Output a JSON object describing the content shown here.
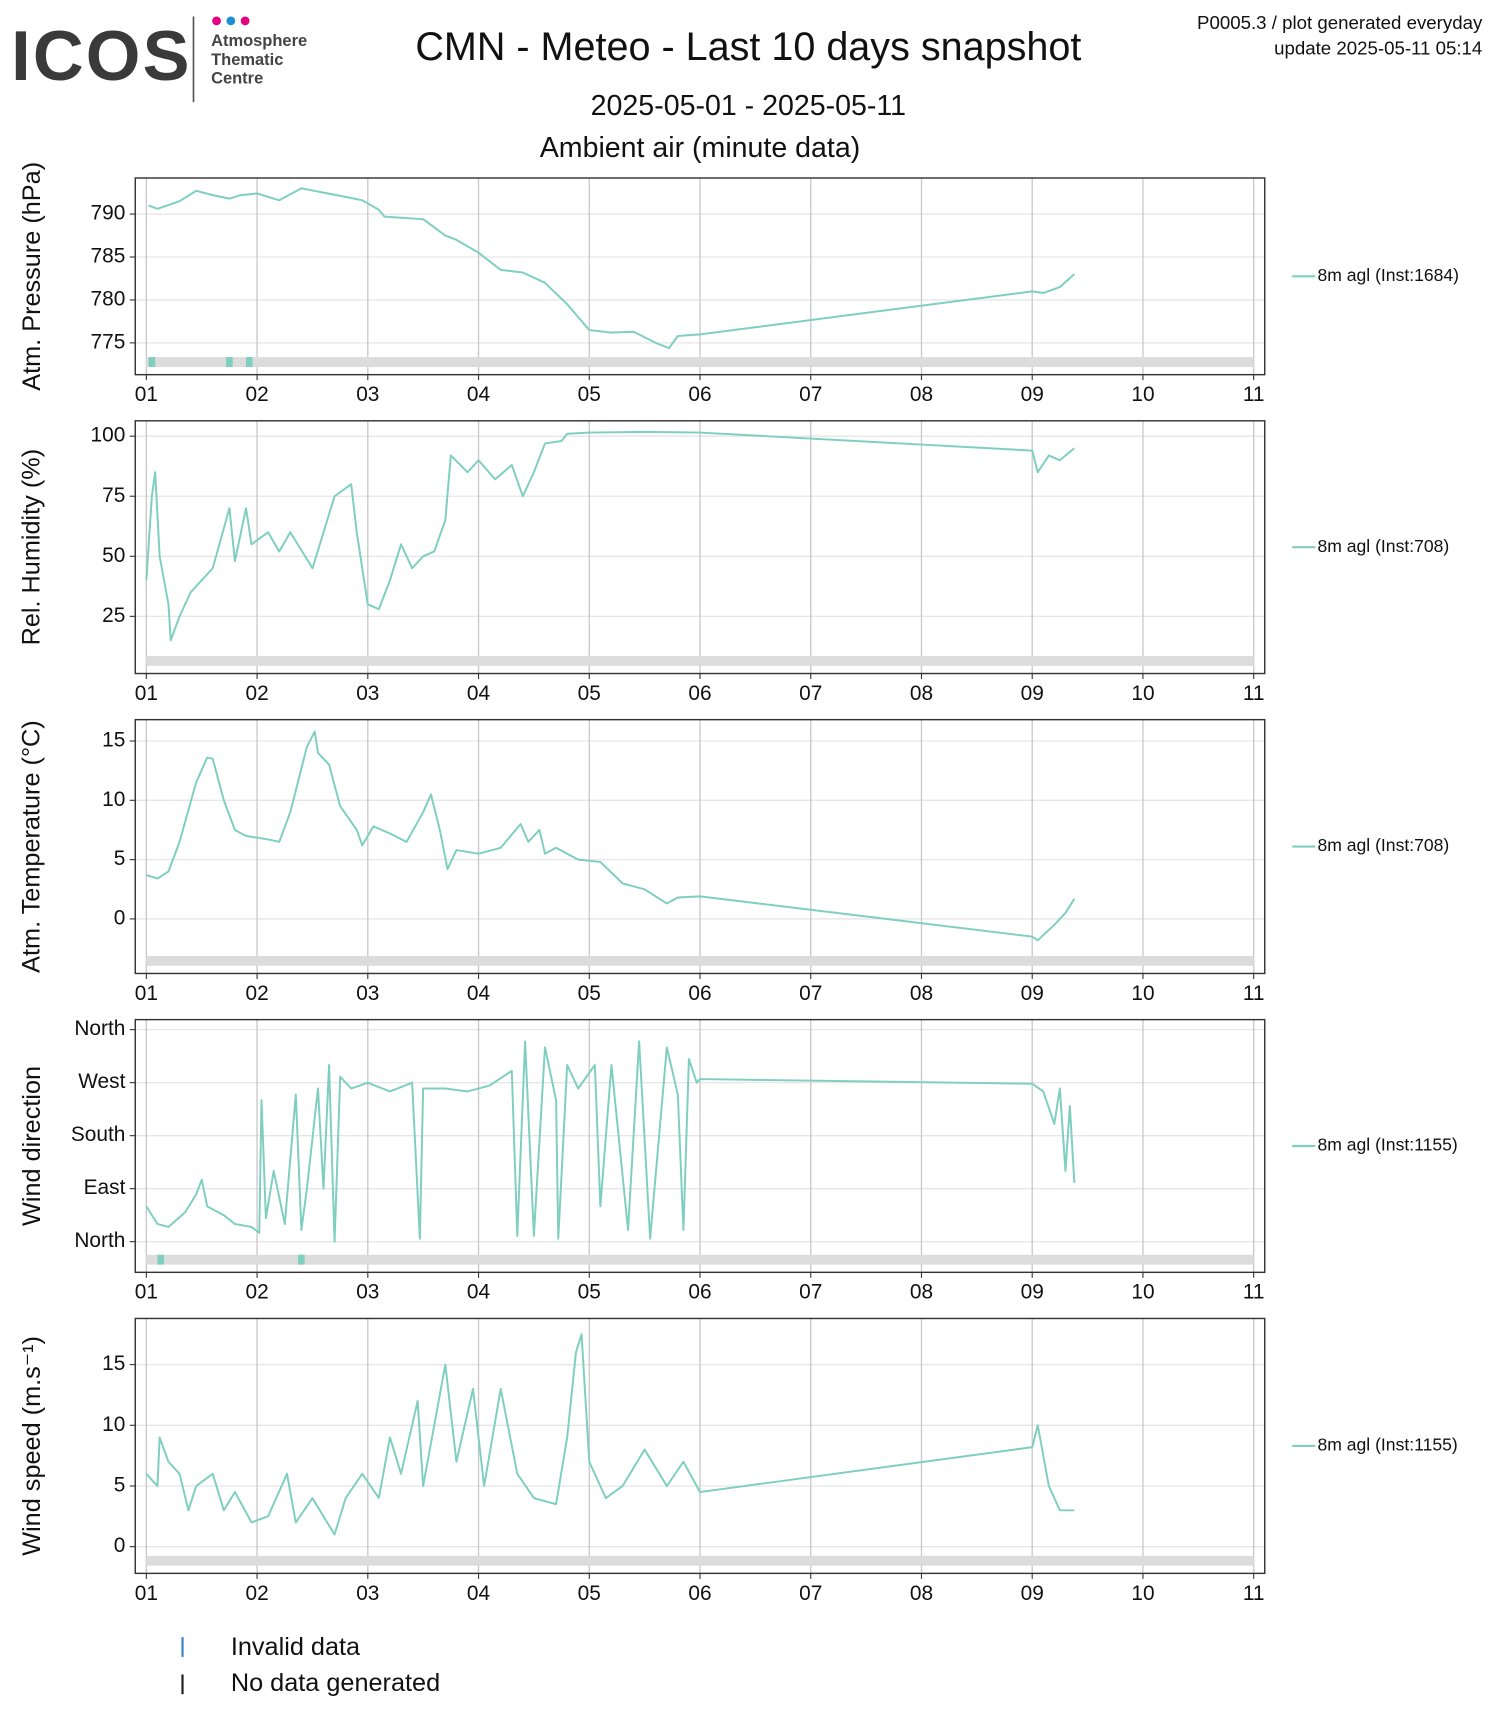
{
  "header": {
    "logo": "ICOS",
    "logo_lines": [
      "Atmosphere",
      "Thematic",
      "Centre"
    ],
    "title": "CMN - Meteo - Last 10 days snapshot",
    "subtitle": "2025-05-01 - 2025-05-11",
    "description": "Ambient air (minute data)",
    "info": [
      "P0005.3 / plot generated everyday",
      "update  2025-05-11 05:14"
    ]
  },
  "legend": {
    "invalid": "Invalid data",
    "nodata": "No data generated"
  },
  "chart_data": [
    {
      "type": "line",
      "ylabel": "Atm. Pressure (hPa)",
      "xlim": [
        0.9,
        11.1
      ],
      "xticks": [
        {
          "value": 1,
          "label": "01"
        },
        {
          "value": 2,
          "label": "02"
        },
        {
          "value": 3,
          "label": "03"
        },
        {
          "value": 4,
          "label": "04"
        },
        {
          "value": 5,
          "label": "05"
        },
        {
          "value": 6,
          "label": "06"
        },
        {
          "value": 7,
          "label": "07"
        },
        {
          "value": 8,
          "label": "08"
        },
        {
          "value": 9,
          "label": "09"
        },
        {
          "value": 10,
          "label": "10"
        },
        {
          "value": 11,
          "label": "11"
        }
      ],
      "ylim": [
        771.3,
        794.2
      ],
      "yticks": [
        775,
        780,
        785,
        790
      ],
      "grid": true,
      "invalid_x": [
        1.05,
        1.75,
        1.93
      ],
      "x": [
        1.02,
        1.1,
        1.3,
        1.45,
        1.6,
        1.75,
        1.85,
        2.0,
        2.2,
        2.4,
        2.6,
        2.8,
        2.95,
        3.1,
        3.15,
        3.5,
        3.7,
        3.8,
        4.0,
        4.2,
        4.4,
        4.6,
        4.8,
        5.0,
        5.2,
        5.4,
        5.6,
        5.72,
        5.8,
        6.0,
        9.0,
        9.1,
        9.25,
        9.38
      ],
      "series": [
        {
          "name": "8m agl (Inst:1684)",
          "color": "#7fcfc0",
          "values": [
            791,
            790.6,
            791.5,
            792.7,
            792.2,
            791.8,
            792.2,
            792.4,
            791.6,
            793,
            792.5,
            792,
            791.6,
            790.5,
            789.7,
            789.4,
            787.5,
            787,
            785.5,
            783.5,
            783.2,
            782,
            779.5,
            776.5,
            776.2,
            776.3,
            775,
            774.4,
            775.8,
            776,
            781,
            780.8,
            781.5,
            783
          ]
        }
      ]
    },
    {
      "type": "line",
      "ylabel": "Rel. Humidity (%)",
      "xlim": [
        0.9,
        11.1
      ],
      "xticks": [
        {
          "value": 1,
          "label": "01"
        },
        {
          "value": 2,
          "label": "02"
        },
        {
          "value": 3,
          "label": "03"
        },
        {
          "value": 4,
          "label": "04"
        },
        {
          "value": 5,
          "label": "05"
        },
        {
          "value": 6,
          "label": "06"
        },
        {
          "value": 7,
          "label": "07"
        },
        {
          "value": 8,
          "label": "08"
        },
        {
          "value": 9,
          "label": "09"
        },
        {
          "value": 10,
          "label": "10"
        },
        {
          "value": 11,
          "label": "11"
        }
      ],
      "ylim": [
        1.2,
        106.4
      ],
      "yticks": [
        25,
        50,
        75,
        100
      ],
      "grid": true,
      "invalid_x": [],
      "x": [
        1.0,
        1.05,
        1.08,
        1.12,
        1.2,
        1.22,
        1.3,
        1.4,
        1.6,
        1.75,
        1.8,
        1.9,
        1.95,
        2.1,
        2.2,
        2.3,
        2.5,
        2.7,
        2.85,
        2.9,
        3.0,
        3.1,
        3.2,
        3.3,
        3.4,
        3.5,
        3.6,
        3.7,
        3.75,
        3.9,
        4.0,
        4.15,
        4.3,
        4.4,
        4.5,
        4.6,
        4.75,
        4.8,
        5.0,
        5.5,
        6.0,
        9.0,
        9.05,
        9.15,
        9.25,
        9.38
      ],
      "series": [
        {
          "name": "8m agl (Inst:708)",
          "color": "#7fcfc0",
          "values": [
            40,
            75,
            85,
            50,
            30,
            15,
            25,
            35,
            45,
            70,
            48,
            70,
            55,
            60,
            52,
            60,
            45,
            75,
            80,
            60,
            30,
            28,
            40,
            55,
            45,
            50,
            52,
            65,
            92,
            85,
            90,
            82,
            88,
            75,
            85,
            97,
            98,
            101,
            101.5,
            101.8,
            101.5,
            94,
            85,
            92,
            90,
            95
          ]
        }
      ]
    },
    {
      "type": "line",
      "ylabel": "Atm. Temperature (°C)",
      "xlim": [
        0.9,
        11.1
      ],
      "xticks": [
        {
          "value": 1,
          "label": "01"
        },
        {
          "value": 2,
          "label": "02"
        },
        {
          "value": 3,
          "label": "03"
        },
        {
          "value": 4,
          "label": "04"
        },
        {
          "value": 5,
          "label": "05"
        },
        {
          "value": 6,
          "label": "06"
        },
        {
          "value": 7,
          "label": "07"
        },
        {
          "value": 8,
          "label": "08"
        },
        {
          "value": 9,
          "label": "09"
        },
        {
          "value": 10,
          "label": "10"
        },
        {
          "value": 11,
          "label": "11"
        }
      ],
      "ylim": [
        -4.6,
        16.8
      ],
      "yticks": [
        0,
        5,
        10,
        15
      ],
      "grid": true,
      "invalid_x": [],
      "x": [
        1.0,
        1.1,
        1.2,
        1.3,
        1.45,
        1.55,
        1.6,
        1.7,
        1.8,
        1.9,
        2.1,
        2.2,
        2.3,
        2.45,
        2.52,
        2.55,
        2.65,
        2.75,
        2.9,
        2.95,
        3.05,
        3.2,
        3.35,
        3.5,
        3.57,
        3.65,
        3.72,
        3.8,
        4.0,
        4.2,
        4.38,
        4.45,
        4.55,
        4.6,
        4.7,
        4.9,
        5.1,
        5.3,
        5.5,
        5.7,
        5.8,
        6.0,
        9.0,
        9.05,
        9.2,
        9.3,
        9.38
      ],
      "series": [
        {
          "name": "8m agl (Inst:708)",
          "color": "#7fcfc0",
          "values": [
            3.7,
            3.4,
            4,
            6.5,
            11.5,
            13.6,
            13.5,
            10,
            7.5,
            7,
            6.7,
            6.5,
            9,
            14.5,
            15.8,
            14,
            13,
            9.5,
            7.5,
            6.2,
            7.8,
            7.2,
            6.5,
            9,
            10.5,
            7.5,
            4.2,
            5.8,
            5.5,
            6,
            8,
            6.5,
            7.5,
            5.5,
            6,
            5,
            4.8,
            3,
            2.5,
            1.3,
            1.8,
            1.9,
            -1.5,
            -1.8,
            -0.5,
            0.5,
            1.7
          ]
        }
      ]
    },
    {
      "type": "line",
      "ylabel": "Wind direction",
      "xlim": [
        0.9,
        11.1
      ],
      "xticks": [
        {
          "value": 1,
          "label": "01"
        },
        {
          "value": 2,
          "label": "02"
        },
        {
          "value": 3,
          "label": "03"
        },
        {
          "value": 4,
          "label": "04"
        },
        {
          "value": 5,
          "label": "05"
        },
        {
          "value": 6,
          "label": "06"
        },
        {
          "value": 7,
          "label": "07"
        },
        {
          "value": 8,
          "label": "08"
        },
        {
          "value": 9,
          "label": "09"
        },
        {
          "value": 10,
          "label": "10"
        },
        {
          "value": 11,
          "label": "11"
        }
      ],
      "ylim": [
        -52,
        377
      ],
      "yticks": [
        {
          "value": 0,
          "label": "North"
        },
        {
          "value": 90,
          "label": "East"
        },
        {
          "value": 180,
          "label": "South"
        },
        {
          "value": 270,
          "label": "West"
        },
        {
          "value": 360,
          "label": "North"
        }
      ],
      "grid": true,
      "invalid_x": [
        1.13,
        2.4
      ],
      "x": [
        1.0,
        1.1,
        1.2,
        1.35,
        1.45,
        1.5,
        1.55,
        1.7,
        1.8,
        1.95,
        2.02,
        2.04,
        2.08,
        2.15,
        2.25,
        2.35,
        2.4,
        2.45,
        2.55,
        2.6,
        2.65,
        2.7,
        2.75,
        2.85,
        3.0,
        3.2,
        3.4,
        3.47,
        3.5,
        3.7,
        3.9,
        4.1,
        4.3,
        4.35,
        4.42,
        4.5,
        4.6,
        4.7,
        4.72,
        4.8,
        4.9,
        5.05,
        5.1,
        5.2,
        5.35,
        5.45,
        5.55,
        5.7,
        5.8,
        5.85,
        5.9,
        5.97,
        6.0,
        9.0,
        9.1,
        9.2,
        9.25,
        9.3,
        9.34,
        9.38
      ],
      "series": [
        {
          "name": "8m agl (Inst:1155)",
          "color": "#7fcfc0",
          "values": [
            60,
            30,
            25,
            50,
            80,
            105,
            60,
            45,
            30,
            25,
            15,
            240,
            40,
            120,
            30,
            250,
            20,
            90,
            260,
            90,
            300,
            0,
            280,
            260,
            270,
            255,
            270,
            5,
            260,
            260,
            255,
            265,
            290,
            10,
            340,
            10,
            330,
            240,
            5,
            300,
            260,
            300,
            60,
            300,
            20,
            340,
            5,
            330,
            250,
            20,
            310,
            270,
            276,
            268,
            255,
            200,
            260,
            120,
            230,
            100
          ]
        }
      ]
    },
    {
      "type": "line",
      "ylabel": "Wind speed (m.s⁻¹)",
      "xlim": [
        0.9,
        11.1
      ],
      "xticks": [
        {
          "value": 1,
          "label": "01"
        },
        {
          "value": 2,
          "label": "02"
        },
        {
          "value": 3,
          "label": "03"
        },
        {
          "value": 4,
          "label": "04"
        },
        {
          "value": 5,
          "label": "05"
        },
        {
          "value": 6,
          "label": "06"
        },
        {
          "value": 7,
          "label": "07"
        },
        {
          "value": 8,
          "label": "08"
        },
        {
          "value": 9,
          "label": "09"
        },
        {
          "value": 10,
          "label": "10"
        },
        {
          "value": 11,
          "label": "11"
        }
      ],
      "ylim": [
        -2.2,
        18.8
      ],
      "yticks": [
        0,
        5,
        10,
        15
      ],
      "grid": true,
      "invalid_x": [],
      "x": [
        1.0,
        1.1,
        1.12,
        1.2,
        1.3,
        1.38,
        1.45,
        1.6,
        1.7,
        1.8,
        1.95,
        2.1,
        2.27,
        2.35,
        2.5,
        2.6,
        2.7,
        2.8,
        2.95,
        3.1,
        3.2,
        3.3,
        3.45,
        3.5,
        3.7,
        3.8,
        3.95,
        4.05,
        4.2,
        4.35,
        4.5,
        4.7,
        4.8,
        4.88,
        4.93,
        5.0,
        5.15,
        5.3,
        5.5,
        5.7,
        5.85,
        6.0,
        9.0,
        9.05,
        9.15,
        9.25,
        9.38
      ],
      "series": [
        {
          "name": "8m agl (Inst:1155)",
          "color": "#7fcfc0",
          "values": [
            6,
            5,
            9,
            7,
            6,
            3,
            5,
            6,
            3,
            4.5,
            2,
            2.5,
            6,
            2,
            4,
            2.5,
            1,
            4,
            6,
            4,
            9,
            6,
            12,
            5,
            15,
            7,
            13,
            5,
            13,
            6,
            4,
            3.5,
            9,
            16,
            17.5,
            7,
            4,
            5,
            8,
            5,
            7,
            4.5,
            8.2,
            10,
            5,
            3,
            3
          ]
        }
      ]
    }
  ]
}
